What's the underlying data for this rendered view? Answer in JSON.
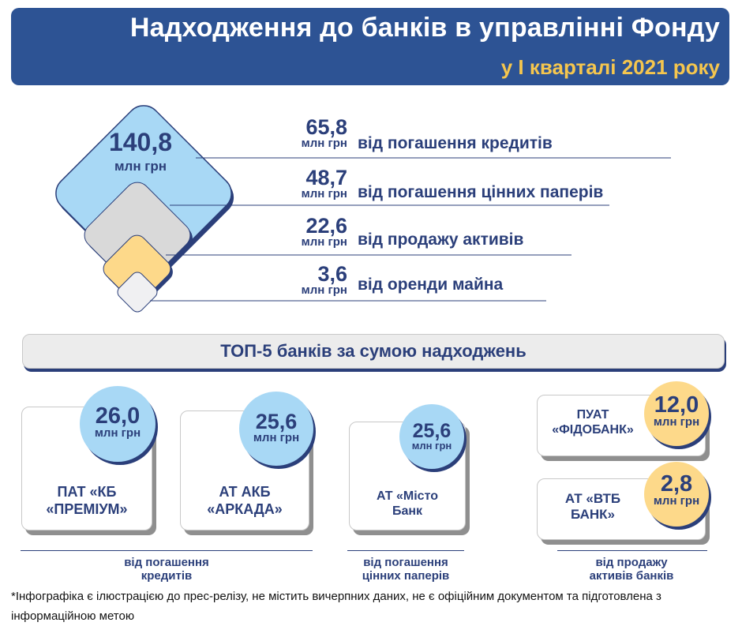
{
  "header": {
    "title": "Надходження до банків в управлінні Фонду",
    "subtitle": "у I кварталі 2021 року"
  },
  "total": {
    "value": "140,8",
    "unit": "млн грн"
  },
  "categories": [
    {
      "value": "65,8",
      "unit": "млн грн",
      "label": "від погашення кредитів"
    },
    {
      "value": "48,7",
      "unit": "млн грн",
      "label": "від погашення цінних паперів"
    },
    {
      "value": "22,6",
      "unit": "млн грн",
      "label": "від продажу активів"
    },
    {
      "value": "3,6",
      "unit": "млн грн",
      "label": "від оренди майна"
    }
  ],
  "top5_title": "ТОП-5 банків за сумою надходжень",
  "banks": [
    {
      "value": "26,0",
      "unit": "млн грн",
      "name_line1": "ПАТ «КБ",
      "name_line2": "«ПРЕМІУМ»"
    },
    {
      "value": "25,6",
      "unit": "млн грн",
      "name_line1": "АТ АКБ",
      "name_line2": "«АРКАДА»"
    },
    {
      "value": "25,6",
      "unit": "млн грн",
      "name_line1": "АТ «Місто",
      "name_line2": "Банк"
    },
    {
      "value": "12,0",
      "unit": "млн грн",
      "name_line1": "ПУАТ",
      "name_line2": "«ФІДОБАНК»"
    },
    {
      "value": "2,8",
      "unit": "млн грн",
      "name_line1": "АТ «ВТБ",
      "name_line2": "БАНК»"
    }
  ],
  "footer_groups": [
    {
      "line1": "від погашення",
      "line2": "кредитів"
    },
    {
      "line1": "від погашення",
      "line2": "цінних паперів"
    },
    {
      "line1": "від продажу",
      "line2": "активів банків"
    }
  ],
  "note": "*Інфографіка є ілюстрацією до прес-релізу, не містить вичерпних даних, не є офіційним документом та підготовлена з інформаційною метою",
  "colors": {
    "navy": "#2d5394",
    "text": "#2b3f7a",
    "gold": "#f5c64e",
    "lightblue": "#a8d8f5",
    "yellow": "#fdd98a",
    "grey": "#d9d9d9"
  }
}
